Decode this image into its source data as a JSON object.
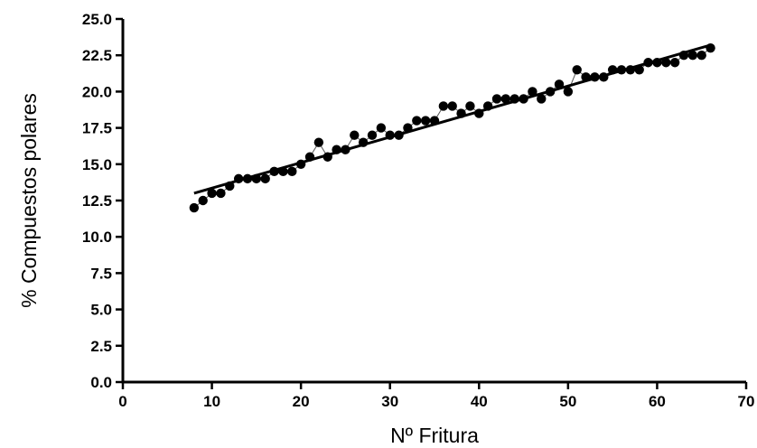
{
  "chart_data": {
    "type": "scatter",
    "title": "",
    "xlabel": "Nº Fritura",
    "ylabel": "% Compuestos polares",
    "xlim": [
      0,
      70
    ],
    "ylim": [
      0,
      25
    ],
    "xticks": [
      0,
      10,
      20,
      30,
      40,
      50,
      60,
      70
    ],
    "yticks": [
      0,
      2.5,
      5,
      7.5,
      10,
      12.5,
      15,
      17.5,
      20,
      22.5,
      25
    ],
    "ytick_format": "1 decimal",
    "grid": false,
    "legend": "none",
    "series": [
      {
        "x": [
          8,
          9,
          10,
          11,
          12,
          13,
          14,
          15,
          16,
          17,
          18,
          19,
          20,
          21,
          22,
          23,
          24,
          25,
          26,
          27,
          28,
          29,
          30,
          31,
          32,
          33,
          34,
          35,
          36,
          37,
          38,
          39,
          40,
          41,
          42,
          43,
          44,
          45,
          46,
          47,
          48,
          49,
          50,
          51,
          52,
          53,
          54,
          55,
          56,
          57,
          58,
          59,
          60,
          61,
          62,
          63,
          64,
          65,
          66
        ],
        "y": [
          12.0,
          12.5,
          13.0,
          13.0,
          13.5,
          14.0,
          14.0,
          14.0,
          14.0,
          14.5,
          14.5,
          14.5,
          15.0,
          15.5,
          16.5,
          15.5,
          16.0,
          16.0,
          17.0,
          16.5,
          17.0,
          17.5,
          17.0,
          17.0,
          17.5,
          18.0,
          18.0,
          18.0,
          19.0,
          19.0,
          18.5,
          19.0,
          18.5,
          19.0,
          19.5,
          19.5,
          19.5,
          19.5,
          20.0,
          19.5,
          20.0,
          20.5,
          20.0,
          21.5,
          21.0,
          21.0,
          21.0,
          21.5,
          21.5,
          21.5,
          21.5,
          22.0,
          22.0,
          22.0,
          22.0,
          22.5,
          22.5,
          22.5,
          23.0
        ]
      }
    ],
    "trendline": {
      "x": [
        8,
        66
      ],
      "y": [
        13.0,
        23.2
      ]
    },
    "colors": {
      "marker": "#000000",
      "connector": "#555555",
      "trendline": "#000000",
      "axis": "#000000"
    }
  }
}
